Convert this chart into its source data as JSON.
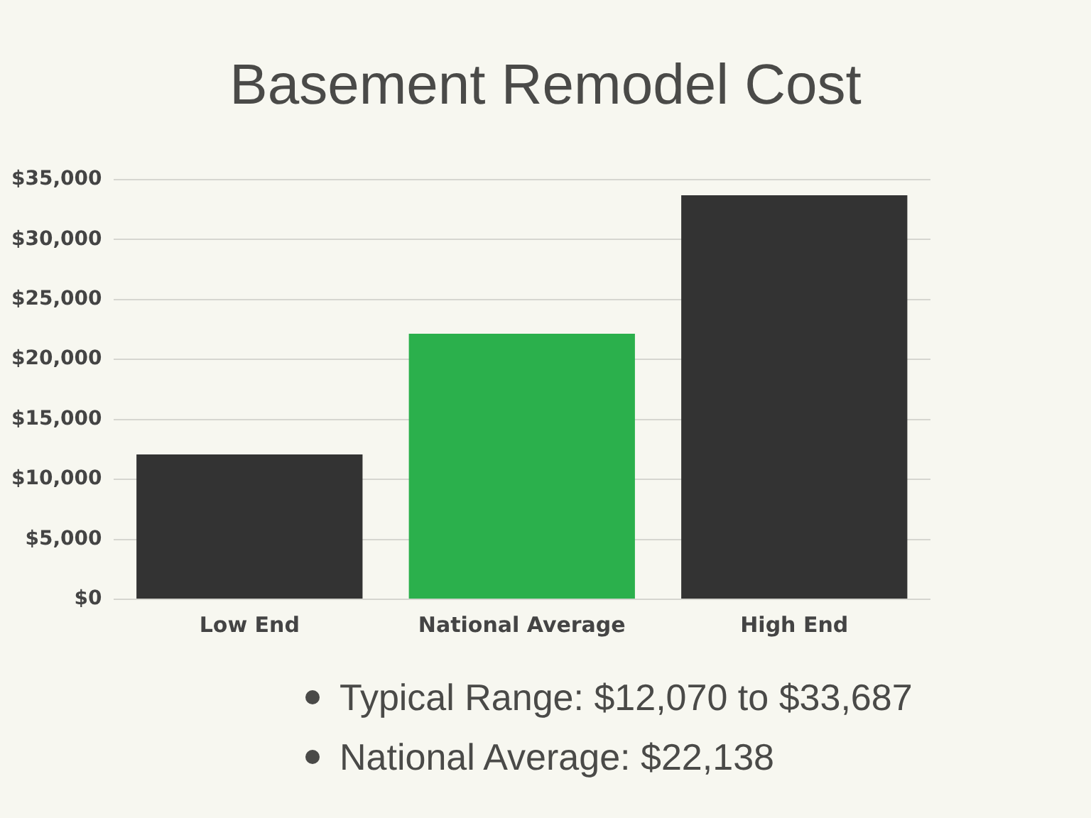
{
  "chart_data": {
    "type": "bar",
    "title": "Basement Remodel Cost",
    "categories": [
      "Low End",
      "National Average",
      "High End"
    ],
    "values": [
      12070,
      22138,
      33687
    ],
    "colors": [
      "#333333",
      "#2bb04c",
      "#333333"
    ],
    "ylim": [
      0,
      35000
    ],
    "yticks": [
      {
        "value": 0,
        "label": "$0"
      },
      {
        "value": 5000,
        "label": "$5,000"
      },
      {
        "value": 10000,
        "label": "$10,000"
      },
      {
        "value": 15000,
        "label": "$15,000"
      },
      {
        "value": 20000,
        "label": "$20,000"
      },
      {
        "value": 25000,
        "label": "$25,000"
      },
      {
        "value": 30000,
        "label": "$30,000"
      },
      {
        "value": 35000,
        "label": "$35,000"
      }
    ],
    "grid": "y",
    "legend": false,
    "annotations": [
      "Typical Range: $12,070 to $33,687",
      "National Average: $22,138"
    ]
  }
}
